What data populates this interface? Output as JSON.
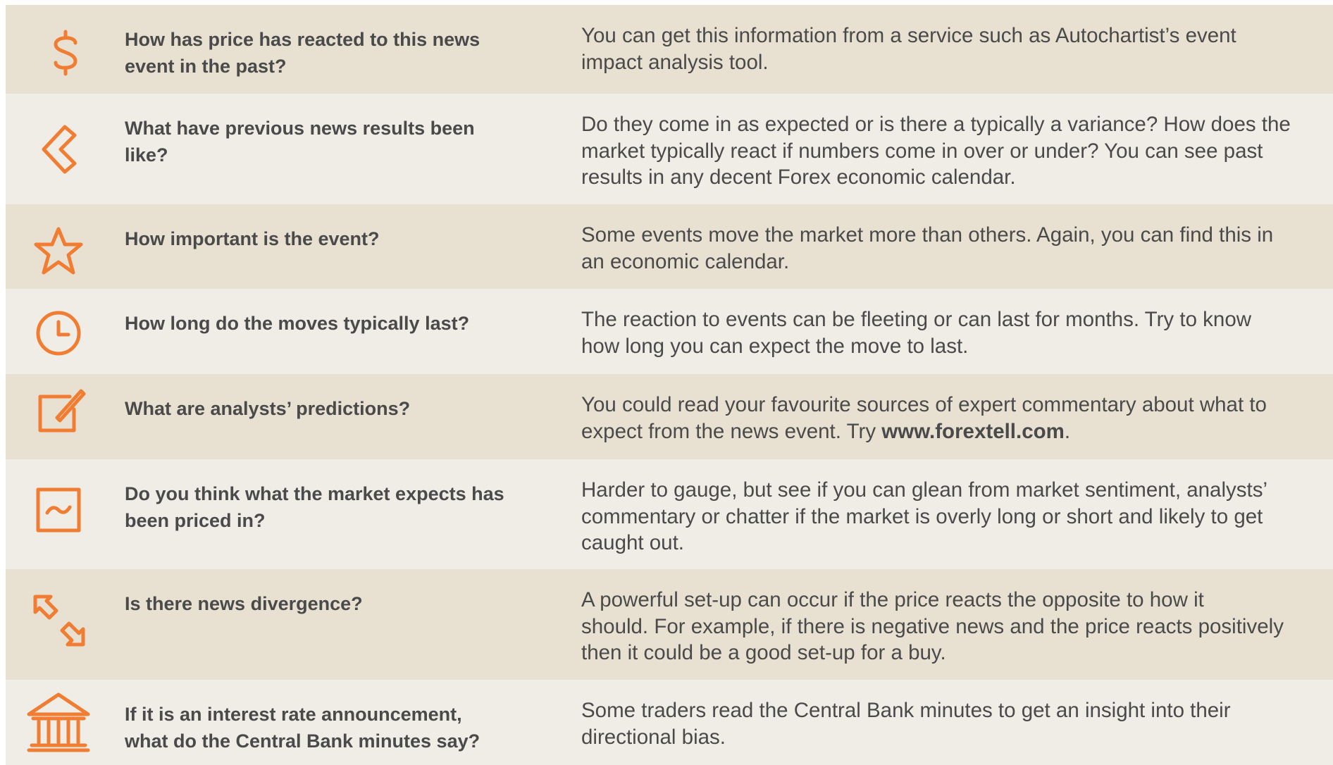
{
  "rows": [
    {
      "question": [
        "How has price has reacted to this news",
        "event in the past?"
      ],
      "answer": [
        "You can get this information from a service such as Autochartist’s event",
        "impact analysis tool."
      ]
    },
    {
      "question": [
        "What have previous news results been",
        "like?"
      ],
      "answer": [
        "Do they come in as expected or is there a typically a variance? How does the",
        "market typically react if numbers come in over or under? You can see past",
        "results in any decent Forex economic calendar."
      ]
    },
    {
      "question": [
        "How important is the event?"
      ],
      "answer": [
        "Some events move the market more than others. Again, you can find this in",
        "an economic calendar."
      ]
    },
    {
      "question": [
        "How long do the moves typically last?"
      ],
      "answer": [
        "The reaction to events can be fleeting or can last for months. Try to know",
        "how long you can expect the move to last."
      ]
    },
    {
      "question": [
        "What are analysts’ predictions?"
      ],
      "answer": [
        "You could read your favourite sources of expert commentary about what to",
        "expect from the news event. Try "
      ],
      "link": "www.forextell.com",
      "link_end": "."
    },
    {
      "question": [
        "Do you think what the market expects has",
        "been priced in?"
      ],
      "answer": [
        "Harder to gauge, but see if you can glean from market sentiment, analysts’",
        "commentary or chatter if the market is overly long or short and likely to get",
        "caught out."
      ]
    },
    {
      "question": [
        "Is there news divergence?"
      ],
      "answer": [
        "A powerful set-up can occur if the price reacts the opposite to how it",
        "should. For example, if there is negative news and the price reacts positively",
        "then it could be a good set-up for a buy."
      ]
    },
    {
      "question": [
        "If it is an interest rate announcement,",
        "what do the Central Bank minutes say?"
      ],
      "answer": [
        "Some traders read the Central Bank minutes to get an insight into their",
        "directional bias."
      ]
    }
  ]
}
